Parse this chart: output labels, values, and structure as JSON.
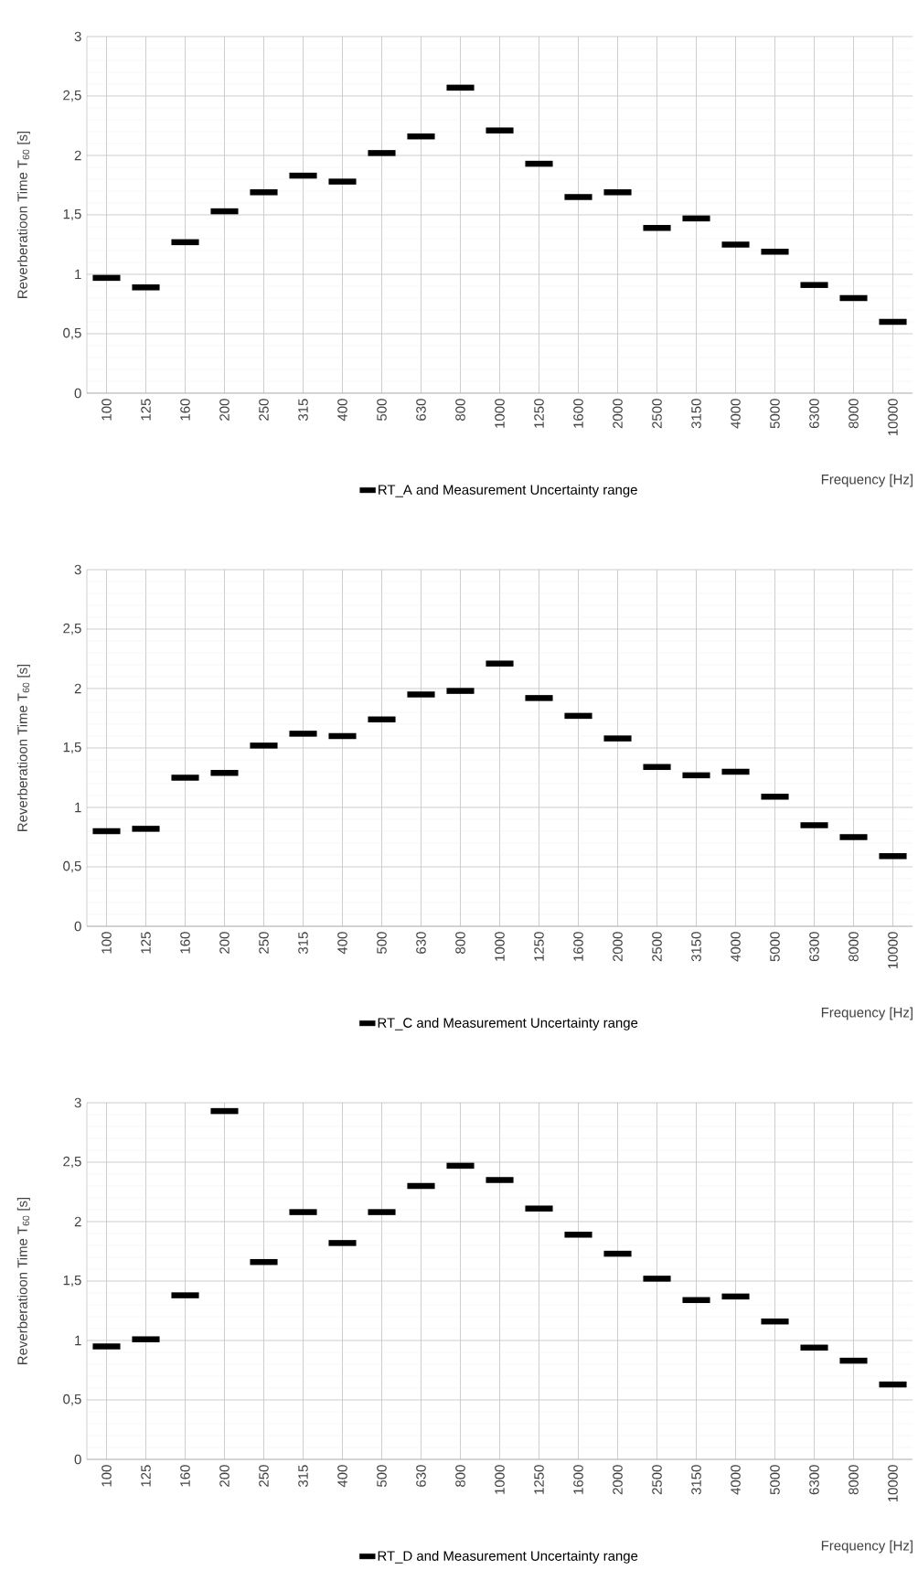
{
  "chart_data": [
    {
      "type": "bar",
      "xlabel": "Frequency [Hz]",
      "ylabel": "Reverberatioon Time T$_{60}$ [s]",
      "legend": "bottom",
      "grid": true,
      "categories": [
        "100",
        "125",
        "160",
        "200",
        "250",
        "315",
        "400",
        "500",
        "630",
        "800",
        "1000",
        "1250",
        "1600",
        "2000",
        "2500",
        "3150",
        "4000",
        "5000",
        "6300",
        "8000",
        "10000"
      ],
      "ylim": [
        0,
        3
      ],
      "yticks": [
        0,
        {
          "value": 0.5,
          "label": "0,5"
        },
        1,
        {
          "value": 1.5,
          "label": "1,5"
        },
        2,
        {
          "value": 2.5,
          "label": "2,5"
        },
        3
      ],
      "series": [
        {
          "name": "RT_A and Measurement Uncertainty range",
          "color": "#000000",
          "base": [
            0.945,
            0.865,
            1.245,
            1.505,
            1.665,
            1.805,
            1.755,
            1.995,
            2.135,
            2.545,
            2.185,
            1.905,
            1.625,
            1.665,
            1.365,
            1.445,
            1.225,
            1.165,
            0.885,
            0.775,
            0.575
          ],
          "values": [
            0.05,
            0.05,
            0.05,
            0.05,
            0.05,
            0.05,
            0.05,
            0.05,
            0.05,
            0.05,
            0.05,
            0.05,
            0.05,
            0.05,
            0.05,
            0.05,
            0.05,
            0.05,
            0.05,
            0.05,
            0.05
          ]
        }
      ]
    },
    {
      "type": "bar",
      "xlabel": "Frequency [Hz]",
      "ylabel": "Reverberatioon Time T$_{60}$ [s]",
      "legend": "bottom",
      "grid": true,
      "categories": [
        "100",
        "125",
        "160",
        "200",
        "250",
        "315",
        "400",
        "500",
        "630",
        "800",
        "1000",
        "1250",
        "1600",
        "2000",
        "2500",
        "3150",
        "4000",
        "5000",
        "6300",
        "8000",
        "10000"
      ],
      "ylim": [
        0,
        3
      ],
      "yticks": [
        0,
        {
          "value": 0.5,
          "label": "0,5"
        },
        1,
        {
          "value": 1.5,
          "label": "1,5"
        },
        2,
        {
          "value": 2.5,
          "label": "2,5"
        },
        3
      ],
      "series": [
        {
          "name": "RT_C and Measurement Uncertainty range",
          "color": "#000000",
          "base": [
            0.775,
            0.795,
            1.225,
            1.265,
            1.495,
            1.595,
            1.575,
            1.715,
            1.925,
            1.955,
            2.185,
            1.895,
            1.745,
            1.555,
            1.315,
            1.245,
            1.275,
            1.065,
            0.825,
            0.725,
            0.565
          ],
          "values": [
            0.05,
            0.05,
            0.05,
            0.05,
            0.05,
            0.05,
            0.05,
            0.05,
            0.05,
            0.05,
            0.05,
            0.05,
            0.05,
            0.05,
            0.05,
            0.05,
            0.05,
            0.05,
            0.05,
            0.05,
            0.05
          ]
        }
      ]
    },
    {
      "type": "bar",
      "xlabel": "Frequency [Hz]",
      "ylabel": "Reverberatioon Time T$_{60}$ [s]",
      "legend": "bottom",
      "grid": true,
      "categories": [
        "100",
        "125",
        "160",
        "200",
        "250",
        "315",
        "400",
        "500",
        "630",
        "800",
        "1000",
        "1250",
        "1600",
        "2000",
        "2500",
        "3150",
        "4000",
        "5000",
        "6300",
        "8000",
        "10000"
      ],
      "ylim": [
        0,
        3
      ],
      "yticks": [
        0,
        {
          "value": 0.5,
          "label": "0,5"
        },
        1,
        {
          "value": 1.5,
          "label": "1,5"
        },
        2,
        {
          "value": 2.5,
          "label": "2,5"
        },
        3
      ],
      "series": [
        {
          "name": "RT_D and Measurement Uncertainty range",
          "color": "#000000",
          "base": [
            0.925,
            0.985,
            1.355,
            2.905,
            1.635,
            2.055,
            1.795,
            2.055,
            2.275,
            2.445,
            2.325,
            2.085,
            1.865,
            1.705,
            1.495,
            1.315,
            1.345,
            1.135,
            0.915,
            0.805,
            0.605
          ],
          "values": [
            0.05,
            0.05,
            0.05,
            0.05,
            0.05,
            0.05,
            0.05,
            0.05,
            0.05,
            0.05,
            0.05,
            0.05,
            0.05,
            0.05,
            0.05,
            0.05,
            0.05,
            0.05,
            0.05,
            0.05,
            0.05
          ]
        }
      ]
    }
  ]
}
